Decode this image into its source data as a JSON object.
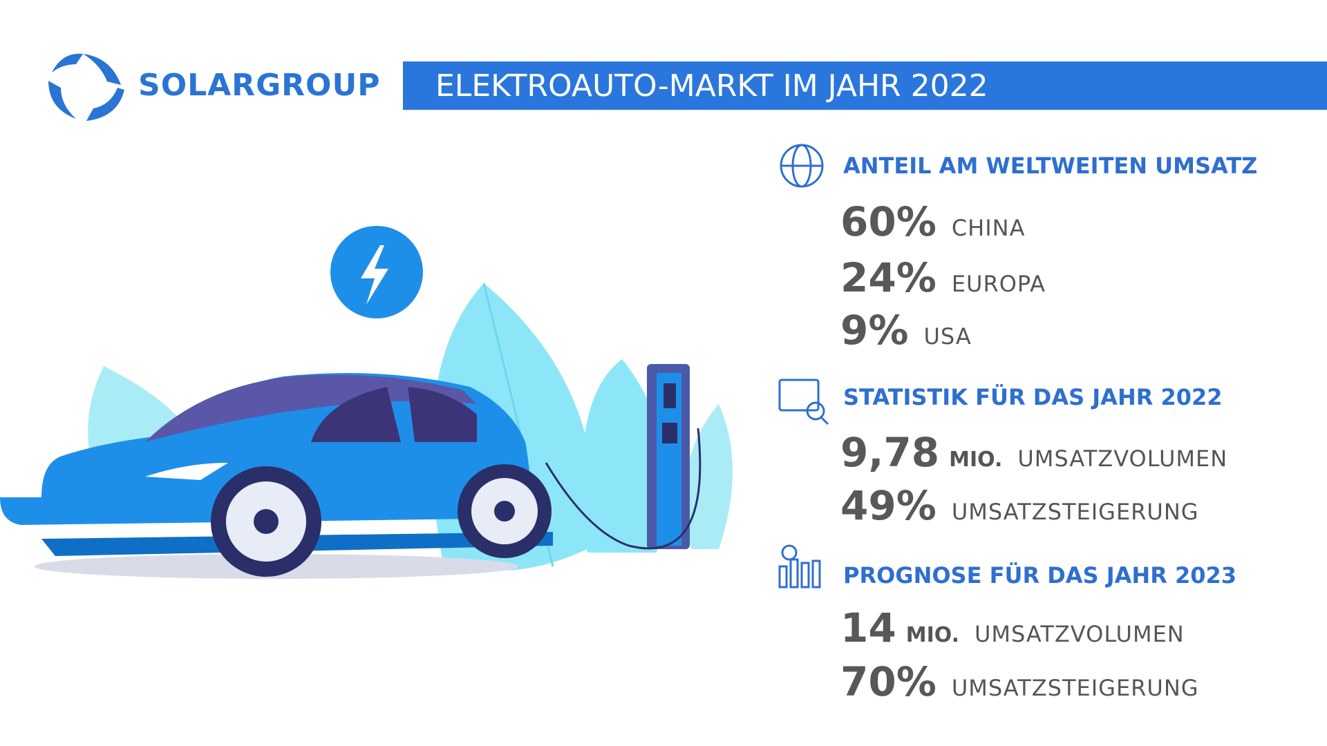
{
  "logo": {
    "text": "SOLARGROUP"
  },
  "header": {
    "title": "ELEKTROAUTO-MARKT IM JAHR 2022"
  },
  "sections": [
    {
      "title": "ANTEIL AM WELTWEITEN UMSATZ",
      "items": [
        {
          "value": "60%",
          "label": "CHINA"
        },
        {
          "value": "24%",
          "label": "EUROPA"
        },
        {
          "value": "9%",
          "label": "USA"
        }
      ]
    },
    {
      "title": "STATISTIK FÜR DAS JAHR 2022",
      "items": [
        {
          "value": "9,78",
          "unit": "MIO.",
          "label": "UMSATZVOLUMEN"
        },
        {
          "value": "49%",
          "label": "UMSATZSTEIGERUNG"
        }
      ]
    },
    {
      "title": "PROGNOSE FÜR DAS JAHR 2023",
      "items": [
        {
          "value": "14",
          "unit": "MIO.",
          "label": "UMSATZVOLUMEN"
        },
        {
          "value": "70%",
          "label": "UMSATZSTEIGERUNG"
        }
      ]
    }
  ]
}
